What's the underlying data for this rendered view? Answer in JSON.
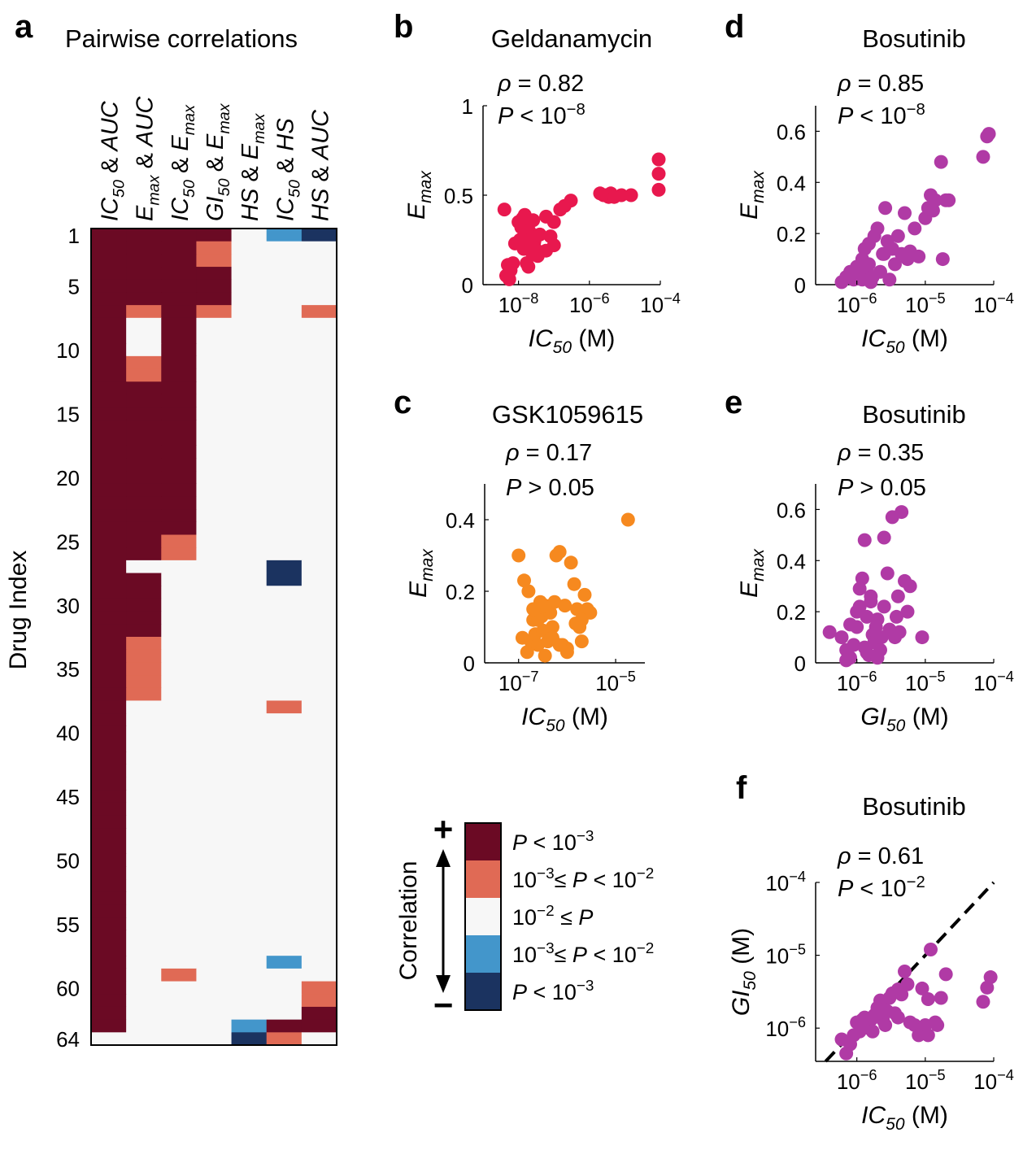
{
  "colors": {
    "pos_strong": "#6B0A24",
    "pos_weak": "#E06A55",
    "neutral": "#F7F7F7",
    "neg_weak": "#4396CB",
    "neg_strong": "#1B3360",
    "geldanamycin": "#E8184E",
    "gsk": "#F6891F",
    "bosutinib": "#B03AA5"
  },
  "panels": {
    "a": {
      "label": "a",
      "title": "Pairwise correlations",
      "ylabel": "Drug Index"
    },
    "b": {
      "label": "b",
      "title": "Geldanamycin"
    },
    "c": {
      "label": "c",
      "title": "GSK1059615"
    },
    "d": {
      "label": "d",
      "title": "Bosutinib"
    },
    "e": {
      "label": "e",
      "title": "Bosutinib"
    },
    "f": {
      "label": "f",
      "title": "Bosutinib"
    }
  },
  "legend": {
    "axis_label": "Correlation",
    "plus": "+",
    "minus": "−",
    "entries": [
      "P < 10−3",
      "10−3≤ P < 10−2",
      "10−2 ≤ P",
      "10−3≤ P < 10−2",
      "P < 10−3"
    ]
  },
  "chart_data": [
    {
      "type": "heatmap",
      "title": "Pairwise correlations",
      "ylabel": "Drug Index",
      "columns": [
        "IC50 & AUC",
        "Emax & AUC",
        "IC50 & Emax",
        "GI50 & Emax",
        "HS & Emax",
        "IC50 & HS",
        "HS & AUC"
      ],
      "row_ticks": [
        "1",
        "5",
        "10",
        "15",
        "20",
        "25",
        "30",
        "35",
        "40",
        "45",
        "50",
        "55",
        "60",
        "64"
      ],
      "levels": {
        "2": "positive P < 1e-3",
        "1": "positive 1e-3 <= P < 1e-2",
        "0": "1e-2 <= P",
        "-1": "negative 1e-3 <= P < 1e-2",
        "-2": "negative P < 1e-3"
      },
      "cells": [
        [
          2,
          2,
          2,
          2,
          0,
          -1,
          -2
        ],
        [
          2,
          2,
          2,
          1,
          0,
          0,
          0
        ],
        [
          2,
          2,
          2,
          1,
          0,
          0,
          0
        ],
        [
          2,
          2,
          2,
          2,
          0,
          0,
          0
        ],
        [
          2,
          2,
          2,
          2,
          0,
          0,
          0
        ],
        [
          2,
          2,
          2,
          2,
          0,
          0,
          0
        ],
        [
          2,
          1,
          2,
          1,
          0,
          0,
          1
        ],
        [
          2,
          0,
          2,
          0,
          0,
          0,
          0
        ],
        [
          2,
          0,
          2,
          0,
          0,
          0,
          0
        ],
        [
          2,
          0,
          2,
          0,
          0,
          0,
          0
        ],
        [
          2,
          1,
          2,
          0,
          0,
          0,
          0
        ],
        [
          2,
          1,
          2,
          0,
          0,
          0,
          0
        ],
        [
          2,
          2,
          2,
          0,
          0,
          0,
          0
        ],
        [
          2,
          2,
          2,
          0,
          0,
          0,
          0
        ],
        [
          2,
          2,
          2,
          0,
          0,
          0,
          0
        ],
        [
          2,
          2,
          2,
          0,
          0,
          0,
          0
        ],
        [
          2,
          2,
          2,
          0,
          0,
          0,
          0
        ],
        [
          2,
          2,
          2,
          0,
          0,
          0,
          0
        ],
        [
          2,
          2,
          2,
          0,
          0,
          0,
          0
        ],
        [
          2,
          2,
          2,
          0,
          0,
          0,
          0
        ],
        [
          2,
          2,
          2,
          0,
          0,
          0,
          0
        ],
        [
          2,
          2,
          2,
          0,
          0,
          0,
          0
        ],
        [
          2,
          2,
          2,
          0,
          0,
          0,
          0
        ],
        [
          2,
          2,
          2,
          0,
          0,
          0,
          0
        ],
        [
          2,
          2,
          1,
          0,
          0,
          0,
          0
        ],
        [
          2,
          2,
          1,
          0,
          0,
          0,
          0
        ],
        [
          2,
          0,
          0,
          0,
          0,
          -2,
          0
        ],
        [
          2,
          2,
          0,
          0,
          0,
          -2,
          0
        ],
        [
          2,
          2,
          0,
          0,
          0,
          0,
          0
        ],
        [
          2,
          2,
          0,
          0,
          0,
          0,
          0
        ],
        [
          2,
          2,
          0,
          0,
          0,
          0,
          0
        ],
        [
          2,
          2,
          0,
          0,
          0,
          0,
          0
        ],
        [
          2,
          1,
          0,
          0,
          0,
          0,
          0
        ],
        [
          2,
          1,
          0,
          0,
          0,
          0,
          0
        ],
        [
          2,
          1,
          0,
          0,
          0,
          0,
          0
        ],
        [
          2,
          1,
          0,
          0,
          0,
          0,
          0
        ],
        [
          2,
          1,
          0,
          0,
          0,
          0,
          0
        ],
        [
          2,
          0,
          0,
          0,
          0,
          1,
          0
        ],
        [
          2,
          0,
          0,
          0,
          0,
          0,
          0
        ],
        [
          2,
          0,
          0,
          0,
          0,
          0,
          0
        ],
        [
          2,
          0,
          0,
          0,
          0,
          0,
          0
        ],
        [
          2,
          0,
          0,
          0,
          0,
          0,
          0
        ],
        [
          2,
          0,
          0,
          0,
          0,
          0,
          0
        ],
        [
          2,
          0,
          0,
          0,
          0,
          0,
          0
        ],
        [
          2,
          0,
          0,
          0,
          0,
          0,
          0
        ],
        [
          2,
          0,
          0,
          0,
          0,
          0,
          0
        ],
        [
          2,
          0,
          0,
          0,
          0,
          0,
          0
        ],
        [
          2,
          0,
          0,
          0,
          0,
          0,
          0
        ],
        [
          2,
          0,
          0,
          0,
          0,
          0,
          0
        ],
        [
          2,
          0,
          0,
          0,
          0,
          0,
          0
        ],
        [
          2,
          0,
          0,
          0,
          0,
          0,
          0
        ],
        [
          2,
          0,
          0,
          0,
          0,
          0,
          0
        ],
        [
          2,
          0,
          0,
          0,
          0,
          0,
          0
        ],
        [
          2,
          0,
          0,
          0,
          0,
          0,
          0
        ],
        [
          2,
          0,
          0,
          0,
          0,
          0,
          0
        ],
        [
          2,
          0,
          0,
          0,
          0,
          0,
          0
        ],
        [
          2,
          0,
          0,
          0,
          0,
          0,
          0
        ],
        [
          2,
          0,
          0,
          0,
          0,
          -1,
          0
        ],
        [
          2,
          0,
          1,
          0,
          0,
          0,
          0
        ],
        [
          2,
          0,
          0,
          0,
          0,
          0,
          1
        ],
        [
          2,
          0,
          0,
          0,
          0,
          0,
          1
        ],
        [
          2,
          0,
          0,
          0,
          0,
          0,
          2
        ],
        [
          2,
          0,
          0,
          0,
          -1,
          2,
          2
        ],
        [
          0,
          0,
          0,
          0,
          -2,
          1,
          0
        ]
      ]
    },
    {
      "type": "scatter",
      "title": "Geldanamycin",
      "stats": {
        "rho": "ρ = 0.82",
        "p": "P < 10−8"
      },
      "xlabel": "IC50 (M)",
      "ylabel": "Emax",
      "xscale": "log",
      "xlim": [
        1e-09,
        0.0001
      ],
      "ylim": [
        0,
        1
      ],
      "xticks": [
        "10−8",
        "10−6",
        "10−4"
      ],
      "yticks": [
        "0",
        "0.5",
        "1"
      ],
      "x": [
        4e-09,
        5e-09,
        4.5e-09,
        6e-09,
        5.5e-09,
        7e-09,
        8e-09,
        1e-08,
        1.2e-08,
        1.3e-08,
        1.5e-08,
        1.1e-08,
        1.4e-08,
        1.6e-08,
        1.8e-08,
        2e-08,
        2.2e-08,
        2.5e-08,
        2.8e-08,
        3e-08,
        3.5e-08,
        4e-08,
        2.6e-08,
        1.7e-08,
        1.9e-08,
        2.1e-08,
        6e-08,
        8e-08,
        1e-07,
        1.5e-07,
        2e-07,
        3e-07,
        6e-08,
        1e-07,
        2e-06,
        2.5e-06,
        3e-06,
        3.5e-06,
        4e-06,
        5e-06,
        8e-06,
        1.5e-05,
        9e-05,
        9e-05,
        9e-05
      ],
      "y": [
        0.42,
        0.11,
        0.05,
        0.08,
        0.03,
        0.12,
        0.23,
        0.35,
        0.32,
        0.37,
        0.39,
        0.25,
        0.2,
        0.28,
        0.33,
        0.3,
        0.27,
        0.17,
        0.24,
        0.2,
        0.16,
        0.28,
        0.36,
        0.12,
        0.1,
        0.25,
        0.38,
        0.27,
        0.22,
        0.42,
        0.44,
        0.47,
        0.19,
        0.35,
        0.51,
        0.5,
        0.5,
        0.49,
        0.51,
        0.49,
        0.5,
        0.5,
        0.7,
        0.62,
        0.53
      ]
    },
    {
      "type": "scatter",
      "title": "GSK1059615",
      "stats": {
        "rho": "ρ = 0.17",
        "p": "P > 0.05"
      },
      "xlabel": "IC50 (M)",
      "ylabel": "Emax",
      "xscale": "log",
      "xlim": [
        2e-08,
        4e-05
      ],
      "ylim": [
        0,
        0.5
      ],
      "xticks": [
        "10−7",
        "10−5"
      ],
      "yticks": [
        "0",
        "0.2",
        "0.4"
      ],
      "x": [
        1e-07,
        1.2e-07,
        1.5e-07,
        1.8e-07,
        1.3e-07,
        1.6e-07,
        2e-07,
        2.2e-07,
        2.5e-07,
        2.8e-07,
        3e-07,
        3.2e-07,
        3.5e-07,
        4e-07,
        4.5e-07,
        5e-07,
        5.5e-07,
        6e-07,
        7e-07,
        8e-07,
        9e-07,
        1e-06,
        1.2e-06,
        1.4e-06,
        1.6e-06,
        1.8e-06,
        2e-06,
        2.3e-06,
        2.6e-06,
        3e-06,
        2e-06,
        1.5e-06,
        1e-06,
        7e-07,
        5e-07,
        3.5e-07,
        2.5e-07,
        2e-07,
        1.8e-05
      ],
      "y": [
        0.3,
        0.07,
        0.03,
        0.06,
        0.23,
        0.2,
        0.12,
        0.08,
        0.05,
        0.17,
        0.13,
        0.09,
        0.02,
        0.06,
        0.14,
        0.1,
        0.17,
        0.3,
        0.31,
        0.05,
        0.16,
        0.03,
        0.28,
        0.22,
        0.15,
        0.1,
        0.06,
        0.19,
        0.15,
        0.14,
        0.12,
        0.11,
        0.04,
        0.05,
        0.07,
        0.16,
        0.12,
        0.15,
        0.4
      ]
    },
    {
      "type": "scatter",
      "title": "Bosutinib",
      "stats": {
        "rho": "ρ = 0.85",
        "p": "P < 10−8"
      },
      "xlabel": "IC50 (M)",
      "ylabel": "Emax",
      "xscale": "log",
      "xlim": [
        2.5e-07,
        0.0001
      ],
      "ylim": [
        0,
        0.7
      ],
      "xticks": [
        "10−6",
        "10−5",
        "10−4"
      ],
      "yticks": [
        "0",
        "0.2",
        "0.4",
        "0.6"
      ],
      "x": [
        6e-07,
        7e-07,
        8e-07,
        9e-07,
        1e-06,
        1.1e-06,
        1.2e-06,
        1.3e-06,
        1.4e-06,
        1.5e-06,
        1.6e-06,
        1.7e-06,
        1.8e-06,
        2e-06,
        2.2e-06,
        2.4e-06,
        2.6e-06,
        2.8e-06,
        3e-06,
        3.3e-06,
        3.6e-06,
        4e-06,
        4.5e-06,
        5e-06,
        5.5e-06,
        6e-06,
        7e-06,
        8e-06,
        1e-05,
        1.1e-05,
        1.2e-05,
        1.4e-05,
        1.7e-05,
        2e-05,
        1.8e-05,
        2.2e-05,
        7e-05,
        8e-05,
        8.5e-05,
        1.2e-06,
        1.5e-06,
        2.5e-06,
        1.3e-05
      ],
      "y": [
        0.01,
        0.03,
        0.05,
        0.02,
        0.07,
        0.04,
        0.1,
        0.14,
        0.06,
        0.08,
        0.01,
        0.03,
        0.19,
        0.22,
        0.05,
        0.12,
        0.3,
        0.17,
        0.02,
        0.14,
        0.08,
        0.19,
        0.12,
        0.28,
        0.1,
        0.13,
        0.22,
        0.11,
        0.26,
        0.3,
        0.35,
        0.33,
        0.48,
        0.33,
        0.1,
        0.33,
        0.5,
        0.58,
        0.59,
        0.02,
        0.16,
        0.12,
        0.29
      ]
    },
    {
      "type": "scatter",
      "title": "Bosutinib",
      "stats": {
        "rho": "ρ = 0.35",
        "p": "P > 0.05"
      },
      "xlabel": "GI50 (M)",
      "ylabel": "Emax",
      "xscale": "log",
      "xlim": [
        2.5e-07,
        0.0001
      ],
      "ylim": [
        0,
        0.7
      ],
      "xticks": [
        "10−6",
        "10−5",
        "10−4"
      ],
      "yticks": [
        "0",
        "0.2",
        "0.4",
        "0.6"
      ],
      "x": [
        4e-07,
        6e-07,
        7e-07,
        8e-07,
        9e-07,
        1e-06,
        1.1e-06,
        1.2e-06,
        1.3e-06,
        1.4e-06,
        1.5e-06,
        1.6e-06,
        1.7e-06,
        1.8e-06,
        2e-06,
        2.2e-06,
        2.5e-06,
        2.8e-06,
        3e-06,
        3.3e-06,
        3.6e-06,
        4e-06,
        4.5e-06,
        5e-06,
        5.5e-06,
        6e-06,
        2.5e-06,
        2e-06,
        1.6e-06,
        1.3e-06,
        1.1e-06,
        8e-07,
        9e-06,
        1e-06,
        2.3e-06,
        3.8e-06,
        4.2e-06,
        1.4e-06,
        1.9e-06,
        7e-07
      ],
      "y": [
        0.12,
        0.1,
        0.05,
        0.02,
        0.07,
        0.14,
        0.22,
        0.33,
        0.48,
        0.18,
        0.03,
        0.26,
        0.11,
        0.08,
        0.17,
        0.05,
        0.22,
        0.35,
        0.13,
        0.57,
        0.1,
        0.26,
        0.59,
        0.32,
        0.2,
        0.3,
        0.49,
        0.02,
        0.24,
        0.06,
        0.29,
        0.15,
        0.1,
        0.2,
        0.1,
        0.18,
        0.12,
        0.04,
        0.14,
        0.01
      ]
    },
    {
      "type": "scatter",
      "title": "Bosutinib",
      "stats": {
        "rho": "ρ = 0.61",
        "p": "P < 10−2"
      },
      "xlabel": "IC50 (M)",
      "ylabel": "GI50 (M)",
      "xscale": "log",
      "yscale": "log",
      "xlim": [
        2.5e-07,
        0.0001
      ],
      "ylim": [
        3.5e-07,
        0.0001
      ],
      "xticks": [
        "10−6",
        "10−5",
        "10−4"
      ],
      "yticks": [
        "10−6",
        "10−5",
        "10−4"
      ],
      "reference_line": "y = x",
      "x": [
        6e-07,
        7e-07,
        8e-07,
        9e-07,
        1e-06,
        1.1e-06,
        1.2e-06,
        1.3e-06,
        1.4e-06,
        1.5e-06,
        1.6e-06,
        1.7e-06,
        1.8e-06,
        2e-06,
        2.2e-06,
        2.4e-06,
        2.6e-06,
        2.8e-06,
        3e-06,
        3.3e-06,
        3.6e-06,
        4e-06,
        4.5e-06,
        5e-06,
        5.5e-06,
        6e-06,
        7e-06,
        8e-06,
        9e-06,
        1e-05,
        1.1e-05,
        1.2e-05,
        1.4e-05,
        1.7e-05,
        2e-05,
        1.5e-05,
        7e-05,
        8e-05,
        9e-05,
        1.2e-06,
        2.5e-06,
        1.1e-05,
        4e-06
      ],
      "y": [
        7e-07,
        4.5e-07,
        6e-07,
        8e-07,
        1.2e-06,
        9e-07,
        1e-06,
        1.4e-06,
        1.1e-06,
        1e-06,
        1.3e-06,
        9e-07,
        1.5e-06,
        1.9e-06,
        2.4e-06,
        1.3e-06,
        1.1e-06,
        1.7e-06,
        2.6e-06,
        3e-06,
        1.6e-06,
        3.4e-06,
        2.9e-06,
        6e-06,
        4e-06,
        1.2e-06,
        1.1e-06,
        8e-07,
        3.5e-06,
        1.1e-06,
        2.5e-06,
        1.2e-05,
        1.2e-06,
        2.6e-06,
        5.5e-06,
        1.1e-06,
        2.3e-06,
        3.6e-06,
        5e-06,
        1.3e-06,
        1.8e-06,
        8e-07,
        1.4e-06
      ]
    }
  ]
}
